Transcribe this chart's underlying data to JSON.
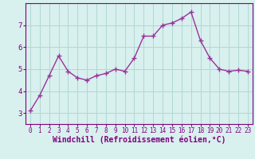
{
  "x": [
    0,
    1,
    2,
    3,
    4,
    5,
    6,
    7,
    8,
    9,
    10,
    11,
    12,
    13,
    14,
    15,
    16,
    17,
    18,
    19,
    20,
    21,
    22,
    23
  ],
  "y": [
    3.1,
    3.8,
    4.7,
    5.6,
    4.9,
    4.6,
    4.5,
    4.7,
    4.8,
    5.0,
    4.9,
    5.5,
    6.5,
    6.5,
    7.0,
    7.1,
    7.3,
    7.6,
    6.3,
    5.5,
    5.0,
    4.9,
    4.95,
    4.9
  ],
  "line_color": "#993399",
  "marker": "+",
  "marker_size": 4,
  "line_width": 1.0,
  "xlabel": "Windchill (Refroidissement éolien,°C)",
  "xlabel_fontsize": 7,
  "xtick_fontsize": 5.5,
  "ytick_fontsize": 6.5,
  "ylim": [
    2.5,
    8.0
  ],
  "xlim": [
    -0.5,
    23.5
  ],
  "yticks": [
    3,
    4,
    5,
    6,
    7
  ],
  "background_color": "#d8f0ee",
  "grid_color": "#b0d8d4",
  "tick_color": "#800080",
  "label_color": "#800080",
  "spine_color": "#800080"
}
